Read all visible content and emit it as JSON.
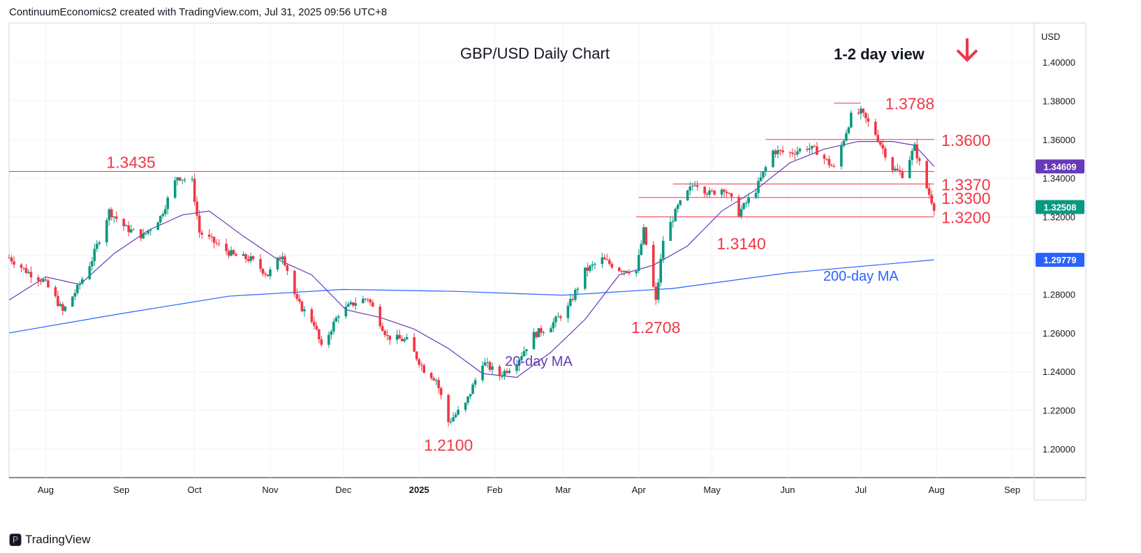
{
  "header": {
    "attribution": "ContinuumEconomics2 created with TradingView.com, Jul 31, 2025 09:56 UTC+8"
  },
  "footer": {
    "brand": "TradingView",
    "logo_icon": "tradingview-logo-icon"
  },
  "colors": {
    "up": "#089981",
    "down": "#f23645",
    "ma20": "#673ab7",
    "ma200": "#2962ff",
    "level": "#f23645",
    "annotation_red": "#f23645",
    "grid": "#f0f3fa"
  },
  "chart_data": {
    "type": "candlestick",
    "title": "GBP/USD Daily Chart",
    "view_label": "1-2 day view",
    "view_icon": "down-arrow-icon",
    "currency": "USD",
    "ylim": [
      1.18,
      1.42
    ],
    "y_ticks": [
      "1.40000",
      "1.38000",
      "1.36000",
      "1.34000",
      "1.32000",
      "1.30000",
      "1.28000",
      "1.26000",
      "1.24000",
      "1.22000",
      "1.20000"
    ],
    "x_ticks": [
      "Aug",
      "Sep",
      "Oct",
      "Nov",
      "Dec",
      "2025",
      "Feb",
      "Mar",
      "Apr",
      "May",
      "Jun",
      "Jul",
      "Aug",
      "Sep"
    ],
    "x_tick_dates": [
      "2024-08-01",
      "2024-09-01",
      "2024-10-01",
      "2024-11-01",
      "2024-12-01",
      "2025-01-01",
      "2025-02-01",
      "2025-03-01",
      "2025-04-01",
      "2025-05-01",
      "2025-06-01",
      "2025-07-01",
      "2025-08-01",
      "2025-09-01"
    ],
    "x_range": [
      "2024-07-17",
      "2025-09-10"
    ],
    "price_tags": [
      {
        "label": "1.34609",
        "value": 1.34609,
        "color": "#673ab7"
      },
      {
        "label": "1.32508",
        "value": 1.32508,
        "color": "#089981"
      },
      {
        "label": "1.29779",
        "value": 1.29779,
        "color": "#2962ff"
      }
    ],
    "levels": [
      {
        "label": "1.3788",
        "value": 1.3788,
        "from": "2025-06-20",
        "to": "2025-07-01"
      },
      {
        "label": "1.3600",
        "value": 1.36,
        "from": "2025-05-23",
        "to": "2025-07-31"
      },
      {
        "label": "1.3435",
        "value": 1.3435,
        "from": "2024-07-17",
        "to": "2025-07-31"
      },
      {
        "label": "1.3370",
        "value": 1.337,
        "from": "2025-04-15",
        "to": "2025-07-31"
      },
      {
        "label": "1.3300",
        "value": 1.33,
        "from": "2025-04-01",
        "to": "2025-07-31"
      },
      {
        "label": "1.3200",
        "value": 1.32,
        "from": "2025-03-31",
        "to": "2025-07-31"
      }
    ],
    "annotations": [
      {
        "label": "1.3788",
        "date": "2025-07-11",
        "value": 1.3788
      },
      {
        "label": "1.3600",
        "date": "2025-08-03",
        "value": 1.36
      },
      {
        "label": "1.3435",
        "date": "2024-07-15",
        "value": 1.3435,
        "anchor": "end_at",
        "end_date": "2024-09-15"
      },
      {
        "label": "1.3370",
        "date": "2025-08-03",
        "value": 1.337
      },
      {
        "label": "1.3300",
        "date": "2025-08-03",
        "value": 1.33
      },
      {
        "label": "1.3200",
        "date": "2025-08-03",
        "value": 1.32
      },
      {
        "label": "1.3140",
        "date": "2025-05-13",
        "value": 1.314,
        "below": true
      },
      {
        "label": "1.2708",
        "date": "2025-04-08",
        "value": 1.2708,
        "below": true
      },
      {
        "label": "1.2100",
        "date": "2025-01-13",
        "value": 1.21,
        "below": true
      }
    ],
    "ma_labels": [
      {
        "label": "20-day MA",
        "color": "#673ab7",
        "date": "2025-02-19",
        "value": 1.243
      },
      {
        "label": "200-day MA",
        "color": "#2962ff",
        "date": "2025-07-01",
        "value": 1.287
      }
    ],
    "close_path": [
      [
        "2024-07-17",
        1.299
      ],
      [
        "2024-07-24",
        1.292
      ],
      [
        "2024-07-31",
        1.287
      ],
      [
        "2024-08-05",
        1.278
      ],
      [
        "2024-08-08",
        1.271
      ],
      [
        "2024-08-14",
        1.283
      ],
      [
        "2024-08-20",
        1.298
      ],
      [
        "2024-08-27",
        1.323
      ],
      [
        "2024-09-03",
        1.314
      ],
      [
        "2024-09-10",
        1.31
      ],
      [
        "2024-09-17",
        1.32
      ],
      [
        "2024-09-24",
        1.341
      ],
      [
        "2024-09-30",
        1.338
      ],
      [
        "2024-10-03",
        1.312
      ],
      [
        "2024-10-10",
        1.306
      ],
      [
        "2024-10-17",
        1.3
      ],
      [
        "2024-10-24",
        1.298
      ],
      [
        "2024-10-31",
        1.29
      ],
      [
        "2024-11-06",
        1.301
      ],
      [
        "2024-11-12",
        1.276
      ],
      [
        "2024-11-19",
        1.265
      ],
      [
        "2024-11-22",
        1.252
      ],
      [
        "2024-11-29",
        1.27
      ],
      [
        "2024-12-06",
        1.276
      ],
      [
        "2024-12-11",
        1.278
      ],
      [
        "2024-12-19",
        1.258
      ],
      [
        "2024-12-27",
        1.256
      ],
      [
        "2025-01-03",
        1.241
      ],
      [
        "2025-01-08",
        1.236
      ],
      [
        "2025-01-13",
        1.214
      ],
      [
        "2025-01-20",
        1.223
      ],
      [
        "2025-01-27",
        1.245
      ],
      [
        "2025-02-03",
        1.238
      ],
      [
        "2025-02-10",
        1.245
      ],
      [
        "2025-02-17",
        1.259
      ],
      [
        "2025-02-24",
        1.264
      ],
      [
        "2025-03-03",
        1.273
      ],
      [
        "2025-03-10",
        1.292
      ],
      [
        "2025-03-17",
        1.298
      ],
      [
        "2025-03-24",
        1.293
      ],
      [
        "2025-03-31",
        1.292
      ],
      [
        "2025-04-03",
        1.313
      ],
      [
        "2025-04-08",
        1.276
      ],
      [
        "2025-04-11",
        1.308
      ],
      [
        "2025-04-17",
        1.325
      ],
      [
        "2025-04-24",
        1.338
      ],
      [
        "2025-04-30",
        1.332
      ],
      [
        "2025-05-06",
        1.335
      ],
      [
        "2025-05-12",
        1.322
      ],
      [
        "2025-05-19",
        1.334
      ],
      [
        "2025-05-26",
        1.354
      ],
      [
        "2025-06-02",
        1.353
      ],
      [
        "2025-06-09",
        1.356
      ],
      [
        "2025-06-13",
        1.354
      ],
      [
        "2025-06-20",
        1.345
      ],
      [
        "2025-06-27",
        1.372
      ],
      [
        "2025-07-01",
        1.374
      ],
      [
        "2025-07-07",
        1.363
      ],
      [
        "2025-07-14",
        1.345
      ],
      [
        "2025-07-18",
        1.342
      ],
      [
        "2025-07-23",
        1.356
      ],
      [
        "2025-07-28",
        1.335
      ],
      [
        "2025-07-31",
        1.3251
      ]
    ],
    "ma20_path": [
      [
        "2024-07-17",
        1.277
      ],
      [
        "2024-08-01",
        1.289
      ],
      [
        "2024-08-15",
        1.285
      ],
      [
        "2024-08-29",
        1.301
      ],
      [
        "2024-09-12",
        1.313
      ],
      [
        "2024-09-26",
        1.321
      ],
      [
        "2024-10-07",
        1.323
      ],
      [
        "2024-10-21",
        1.31
      ],
      [
        "2024-11-04",
        1.298
      ],
      [
        "2024-11-18",
        1.29
      ],
      [
        "2024-12-02",
        1.272
      ],
      [
        "2024-12-16",
        1.268
      ],
      [
        "2024-12-30",
        1.262
      ],
      [
        "2025-01-13",
        1.252
      ],
      [
        "2025-01-27",
        1.239
      ],
      [
        "2025-02-10",
        1.237
      ],
      [
        "2025-02-24",
        1.25
      ],
      [
        "2025-03-10",
        1.267
      ],
      [
        "2025-03-24",
        1.29
      ],
      [
        "2025-04-07",
        1.295
      ],
      [
        "2025-04-21",
        1.305
      ],
      [
        "2025-05-05",
        1.323
      ],
      [
        "2025-05-19",
        1.334
      ],
      [
        "2025-06-02",
        1.348
      ],
      [
        "2025-06-16",
        1.355
      ],
      [
        "2025-06-30",
        1.359
      ],
      [
        "2025-07-14",
        1.359
      ],
      [
        "2025-07-23",
        1.357
      ],
      [
        "2025-07-31",
        1.3461
      ]
    ],
    "ma200_path": [
      [
        "2024-07-17",
        1.26
      ],
      [
        "2024-09-01",
        1.27
      ],
      [
        "2024-10-15",
        1.279
      ],
      [
        "2024-12-01",
        1.2825
      ],
      [
        "2025-01-15",
        1.2815
      ],
      [
        "2025-03-01",
        1.2795
      ],
      [
        "2025-04-15",
        1.283
      ],
      [
        "2025-06-01",
        1.291
      ],
      [
        "2025-07-31",
        1.2978
      ]
    ]
  }
}
